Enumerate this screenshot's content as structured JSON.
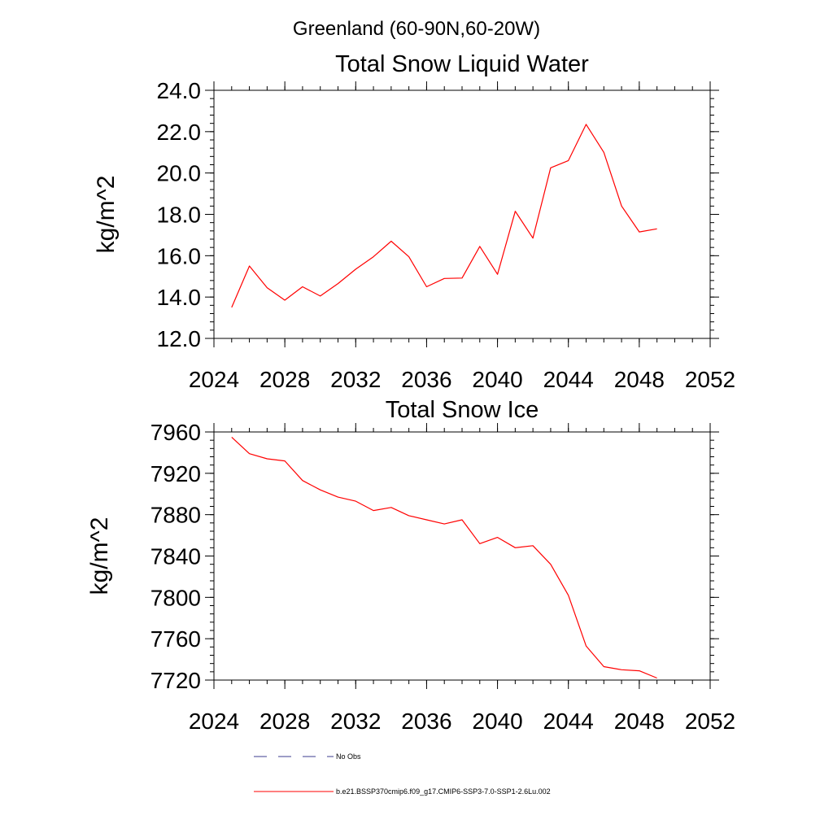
{
  "figure_title": "Greenland (60-90N,60-20W)",
  "chart_data": [
    {
      "type": "line",
      "title": "Total Snow Liquid Water",
      "xlabel": "",
      "ylabel": "kg/m^2",
      "xlim": [
        2024,
        2052
      ],
      "ylim": [
        12.0,
        24.0
      ],
      "xticks": [
        "2024",
        "2028",
        "2032",
        "2036",
        "2040",
        "2044",
        "2048",
        "2052"
      ],
      "yticks": [
        "12.0",
        "14.0",
        "16.0",
        "18.0",
        "20.0",
        "22.0",
        "24.0"
      ],
      "grid": false,
      "series": [
        {
          "name": "b.e21.BSSP370cmip6.f09_g17.CMIP6-SSP3-7.0-SSP1-2.6Lu.002",
          "color": "#ff0000",
          "x": [
            2025,
            2026,
            2027,
            2028,
            2029,
            2030,
            2031,
            2032,
            2033,
            2034,
            2035,
            2036,
            2037,
            2038,
            2039,
            2040,
            2041,
            2042,
            2043,
            2044,
            2045,
            2046,
            2047,
            2048,
            2049
          ],
          "y": [
            13.5,
            15.5,
            14.45,
            13.85,
            14.5,
            14.05,
            14.65,
            15.35,
            15.95,
            16.7,
            15.95,
            14.5,
            14.9,
            14.92,
            16.45,
            15.1,
            18.15,
            16.85,
            20.25,
            20.6,
            22.35,
            21.0,
            18.4,
            17.15,
            17.3
          ]
        }
      ]
    },
    {
      "type": "line",
      "title": "Total Snow Ice",
      "xlabel": "",
      "ylabel": "kg/m^2",
      "xlim": [
        2024,
        2052
      ],
      "ylim": [
        7720,
        7960
      ],
      "xticks": [
        "2024",
        "2028",
        "2032",
        "2036",
        "2040",
        "2044",
        "2048",
        "2052"
      ],
      "yticks": [
        "7720",
        "7760",
        "7800",
        "7840",
        "7880",
        "7920",
        "7960"
      ],
      "grid": false,
      "series": [
        {
          "name": "b.e21.BSSP370cmip6.f09_g17.CMIP6-SSP3-7.0-SSP1-2.6Lu.002",
          "color": "#ff0000",
          "x": [
            2025,
            2026,
            2027,
            2028,
            2029,
            2030,
            2031,
            2032,
            2033,
            2034,
            2035,
            2036,
            2037,
            2038,
            2039,
            2040,
            2041,
            2042,
            2043,
            2044,
            2045,
            2046,
            2047,
            2048,
            2049
          ],
          "y": [
            7955,
            7939,
            7934,
            7932,
            7913,
            7904,
            7897,
            7893,
            7884,
            7887,
            7879,
            7875,
            7871,
            7875,
            7852,
            7858,
            7848,
            7850,
            7832,
            7802,
            7753,
            7733,
            7730,
            7729,
            7722
          ]
        }
      ]
    }
  ],
  "legend": {
    "placement": "bottom",
    "entries": [
      {
        "label": "No Obs",
        "style": "dashed",
        "color": "#3b3b8f"
      },
      {
        "label": "b.e21.BSSP370cmip6.f09_g17.CMIP6-SSP3-7.0-SSP1-2.6Lu.002",
        "style": "solid",
        "color": "#ff0000"
      }
    ]
  }
}
